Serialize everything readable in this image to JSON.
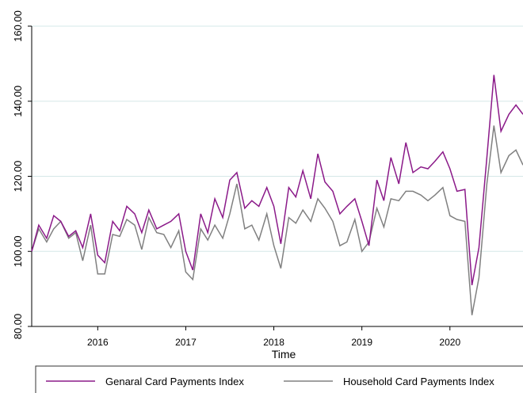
{
  "chart_data": {
    "type": "line",
    "x_label": "Time",
    "x": [
      2015.25,
      2015.33,
      2015.42,
      2015.5,
      2015.58,
      2015.67,
      2015.75,
      2015.83,
      2015.92,
      2016,
      2016.08,
      2016.17,
      2016.25,
      2016.33,
      2016.42,
      2016.5,
      2016.58,
      2016.67,
      2016.75,
      2016.83,
      2016.92,
      2017,
      2017.08,
      2017.17,
      2017.25,
      2017.33,
      2017.42,
      2017.5,
      2017.58,
      2017.67,
      2017.75,
      2017.83,
      2017.92,
      2018,
      2018.08,
      2018.17,
      2018.25,
      2018.33,
      2018.42,
      2018.5,
      2018.58,
      2018.67,
      2018.75,
      2018.83,
      2018.92,
      2019,
      2019.08,
      2019.17,
      2019.25,
      2019.33,
      2019.42,
      2019.5,
      2019.58,
      2019.67,
      2019.75,
      2019.83,
      2019.92,
      2020,
      2020.08,
      2020.17,
      2020.25,
      2020.33,
      2020.42,
      2020.5,
      2020.58,
      2020.67,
      2020.75,
      2020.83
    ],
    "series": [
      {
        "name": "Genaral Card Payments Index",
        "color": "#8b1a89",
        "values": [
          100,
          107,
          103.5,
          109.5,
          108,
          104,
          105.5,
          101,
          110,
          99,
          97,
          108,
          105.5,
          112,
          110,
          105,
          111,
          106,
          107,
          108,
          110,
          100,
          95,
          110,
          105,
          114,
          109,
          119,
          121,
          111.5,
          113.5,
          112,
          117,
          112,
          102,
          117,
          114.5,
          121.5,
          114,
          126,
          118.5,
          116,
          110,
          112,
          114,
          108,
          101.5,
          119,
          113.5,
          125,
          118,
          129,
          121,
          122.5,
          122,
          124,
          126.5,
          122,
          116,
          116.5,
          91,
          101,
          125,
          147,
          132,
          136.5,
          139,
          136.5
        ]
      },
      {
        "name": "Household Card Payments Index",
        "color": "#808080",
        "values": [
          100,
          106,
          102.5,
          106,
          108,
          103.5,
          105,
          97.5,
          107,
          94,
          94,
          104.5,
          104,
          108.5,
          107,
          100.5,
          109,
          105,
          104.5,
          101,
          105.5,
          94.5,
          92.5,
          106,
          103,
          107,
          103.5,
          110,
          118,
          106,
          107,
          103,
          110,
          101.5,
          95.5,
          109,
          107.5,
          111,
          108,
          114,
          111.5,
          108,
          101.5,
          102.5,
          108.5,
          100,
          102.5,
          111.5,
          106.5,
          114,
          113.5,
          116,
          116,
          115,
          113.5,
          115,
          117,
          109.5,
          108.5,
          108,
          83,
          93,
          118,
          133.5,
          121,
          125.5,
          127,
          123
        ]
      }
    ],
    "xlim": [
      2015.25,
      2020.83
    ],
    "xticks": [
      2016,
      2017,
      2018,
      2019,
      2020
    ],
    "ylim": [
      80,
      160
    ],
    "yticks": [
      {
        "value": 80,
        "label": "80.00"
      },
      {
        "value": 100,
        "label": "100.00"
      },
      {
        "value": 120,
        "label": "120.00"
      },
      {
        "value": 140,
        "label": "140.00"
      },
      {
        "value": 160,
        "label": "160.00"
      }
    ],
    "grid": true
  }
}
